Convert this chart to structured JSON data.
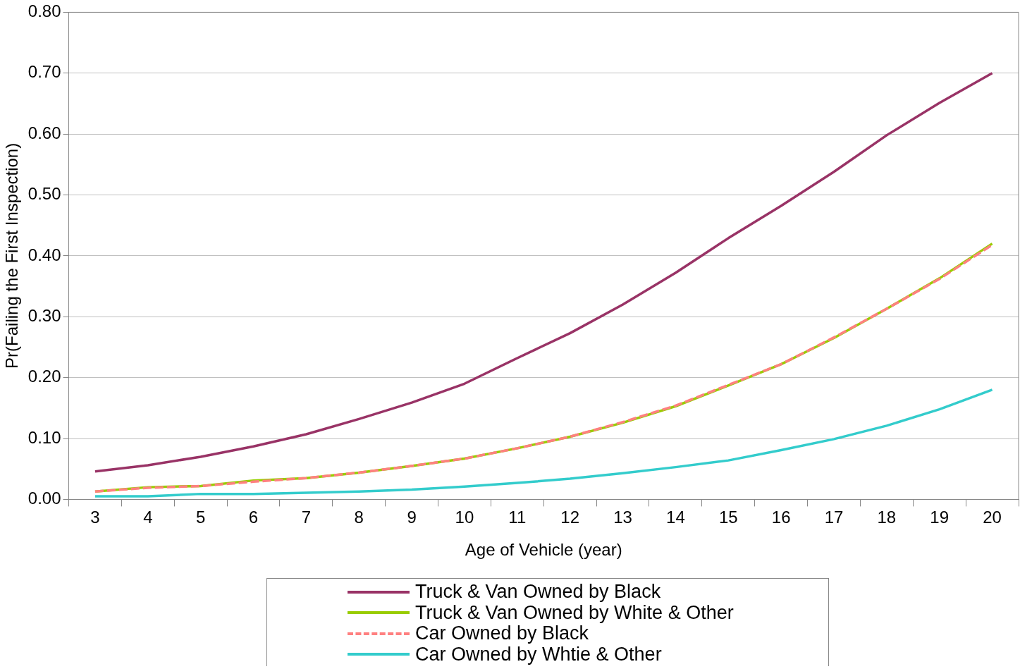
{
  "chart_data": {
    "type": "line",
    "xlabel": "Age of Vehicle (year)",
    "ylabel": "Pr(Failing the First Inspection)",
    "categories": [
      "3",
      "4",
      "5",
      "6",
      "7",
      "8",
      "9",
      "10",
      "11",
      "12",
      "13",
      "14",
      "15",
      "16",
      "17",
      "18",
      "19",
      "20"
    ],
    "series": [
      {
        "name": "Truck & Van Owned by Black",
        "color": "#993366",
        "values": [
          0.046,
          0.056,
          0.07,
          0.087,
          0.107,
          0.132,
          0.159,
          0.19,
          0.232,
          0.273,
          0.32,
          0.372,
          0.429,
          0.482,
          0.538,
          0.598,
          0.651,
          0.7
        ]
      },
      {
        "name": "Truck & Van Owned by White & Other",
        "color": "#99cc00",
        "values": [
          0.013,
          0.02,
          0.022,
          0.031,
          0.035,
          0.044,
          0.055,
          0.067,
          0.084,
          0.103,
          0.126,
          0.153,
          0.187,
          0.222,
          0.265,
          0.313,
          0.363,
          0.42
        ]
      },
      {
        "name": "Car Owned by Black",
        "color": "#ff8080",
        "line_style": "dashed",
        "values": [
          0.013,
          0.019,
          0.022,
          0.029,
          0.035,
          0.044,
          0.055,
          0.067,
          0.084,
          0.103,
          0.127,
          0.154,
          0.188,
          0.222,
          0.266,
          0.313,
          0.362,
          0.418
        ]
      },
      {
        "name": "Car Owned by Whtie & Other",
        "color": "#33cccc",
        "values": [
          0.005,
          0.005,
          0.009,
          0.009,
          0.011,
          0.013,
          0.016,
          0.021,
          0.027,
          0.034,
          0.043,
          0.053,
          0.064,
          0.081,
          0.099,
          0.121,
          0.148,
          0.18
        ]
      }
    ],
    "ylim": [
      0,
      0.8
    ],
    "yticks": [
      {
        "value": 0,
        "label": "0.00"
      },
      {
        "value": 0.1,
        "label": "0.10"
      },
      {
        "value": 0.2,
        "label": "0.20"
      },
      {
        "value": 0.3,
        "label": "0.30"
      },
      {
        "value": 0.4,
        "label": "0.40"
      },
      {
        "value": 0.5,
        "label": "0.50"
      },
      {
        "value": 0.6,
        "label": "0.60"
      },
      {
        "value": 0.7,
        "label": "0.70"
      },
      {
        "value": 0.8,
        "label": "0.80"
      }
    ],
    "grid": "y",
    "legend": "bottom",
    "marker": "none",
    "line_style": "solid"
  }
}
